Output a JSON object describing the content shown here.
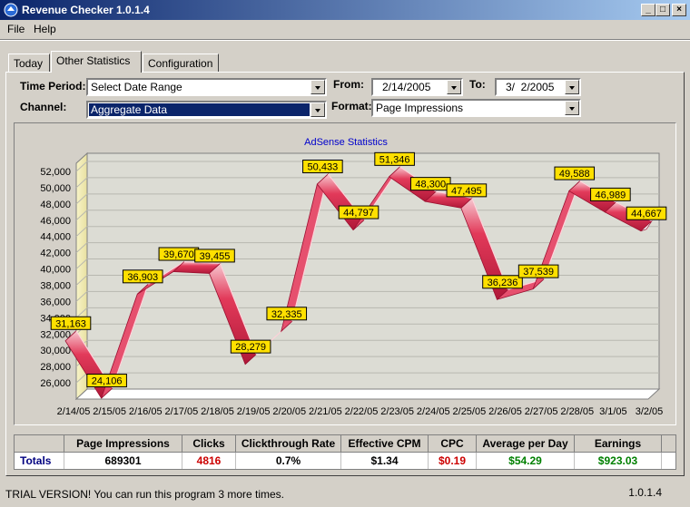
{
  "window": {
    "title": "Revenue Checker 1.0.1.4",
    "min": "_",
    "max": "□",
    "close": "×"
  },
  "menu": {
    "file": "File",
    "help": "Help"
  },
  "tabs": [
    "Today",
    "Other Statistics",
    "Configuration"
  ],
  "controls": {
    "time_period_label": "Time Period:",
    "time_period_value": "Select Date Range",
    "from_label": "From:",
    "from_value": "2/14/2005",
    "to_label": "To:",
    "to_value": "3/  2/2005",
    "channel_label": "Channel:",
    "channel_value": "Aggregate Data",
    "format_label": "Format:",
    "format_value": "Page Impressions"
  },
  "chart_data": {
    "type": "line",
    "style": "3d-ribbon",
    "title": "AdSense Statistics",
    "categories": [
      "2/14/05",
      "2/15/05",
      "2/16/05",
      "2/17/05",
      "2/18/05",
      "2/19/05",
      "2/20/05",
      "2/21/05",
      "2/22/05",
      "2/23/05",
      "2/24/05",
      "2/25/05",
      "2/26/05",
      "2/27/05",
      "2/28/05",
      "3/1/05",
      "3/2/05"
    ],
    "values": [
      31163,
      24106,
      36903,
      39670,
      39455,
      28279,
      32335,
      50433,
      44797,
      51346,
      48300,
      47495,
      36236,
      37539,
      49588,
      46989,
      44667
    ],
    "data_labels": [
      "31,163",
      "24,106",
      "36,903",
      "39,670",
      "39,455",
      "28,279",
      "32,335",
      "50,433",
      "44,797",
      "51,346",
      "48,300",
      "47,495",
      "36,236",
      "37,539",
      "49,588",
      "46,989",
      "44,667"
    ],
    "y_ticks": [
      "26,000",
      "28,000",
      "30,000",
      "32,000",
      "34,000",
      "36,000",
      "38,000",
      "40,000",
      "42,000",
      "44,000",
      "46,000",
      "48,000",
      "50,000",
      "52,000"
    ],
    "ylim": [
      24000,
      53000
    ],
    "grid": true,
    "colors": {
      "ribbon_front": "#e23a5a",
      "ribbon_light": "#f7c8d0",
      "ribbon_edge": "#a01030",
      "label_bg": "#ffe000",
      "title": "#0000cc"
    }
  },
  "table": {
    "headers": [
      "",
      "Page Impressions",
      "Clicks",
      "Clickthrough Rate",
      "Effective CPM",
      "CPC",
      "Average per Day",
      "Earnings"
    ],
    "row_label": "Totals",
    "values": [
      "689301",
      "4816",
      "0.7%",
      "$1.34",
      "$0.19",
      "$54.29",
      "$923.03"
    ],
    "colors": {
      "row_label": "#000080",
      "clicks": "#cc0000",
      "cpc": "#cc0000",
      "average": "#008000",
      "earnings": "#008000"
    }
  },
  "status": {
    "message": "TRIAL VERSION! You can run this program 3 more times.",
    "version": "1.0.1.4"
  }
}
